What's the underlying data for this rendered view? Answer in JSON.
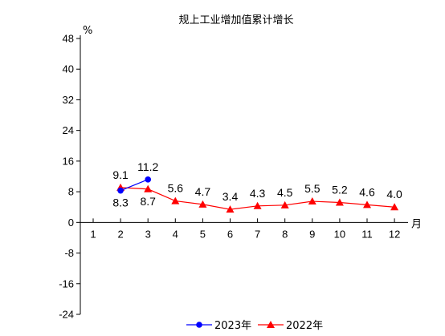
{
  "chart_data": {
    "type": "line",
    "title": "规上工业增加值累计增长",
    "y_unit": "%",
    "x_unit": "月",
    "categories": [
      "1",
      "2",
      "3",
      "4",
      "5",
      "6",
      "7",
      "8",
      "9",
      "10",
      "11",
      "12"
    ],
    "ylim": [
      -24,
      48
    ],
    "yticks": [
      48,
      40,
      32,
      24,
      16,
      8,
      0,
      -8,
      -16,
      -24
    ],
    "grid": false,
    "legend_position": "bottom",
    "series": [
      {
        "name": "2023年",
        "color": "#0000ff",
        "marker": "circle",
        "x": [
          "2",
          "3"
        ],
        "values": [
          8.3,
          11.2
        ],
        "labels": [
          "8.3",
          "11.2"
        ],
        "label_position": [
          "below",
          "above"
        ]
      },
      {
        "name": "2022年",
        "color": "#ff0000",
        "marker": "triangle",
        "x": [
          "2",
          "3",
          "4",
          "5",
          "6",
          "7",
          "8",
          "9",
          "10",
          "11",
          "12"
        ],
        "values": [
          9.1,
          8.7,
          5.6,
          4.7,
          3.4,
          4.3,
          4.5,
          5.5,
          5.2,
          4.6,
          4.0
        ],
        "labels": [
          "9.1",
          "8.7",
          "5.6",
          "4.7",
          "3.4",
          "4.3",
          "4.5",
          "5.5",
          "5.2",
          "4.6",
          "4.0"
        ],
        "label_position": [
          "above",
          "below",
          "above",
          "above",
          "above",
          "above",
          "above",
          "above",
          "above",
          "above",
          "above"
        ]
      }
    ]
  }
}
